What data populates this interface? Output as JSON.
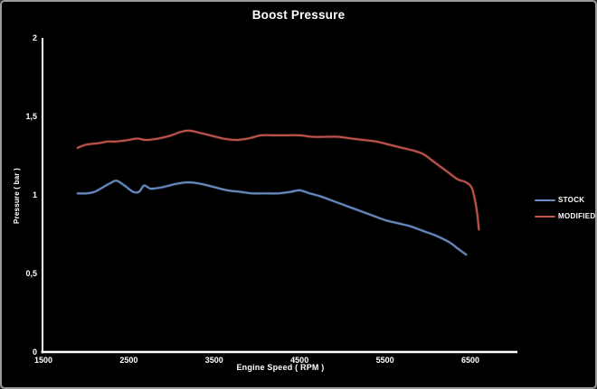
{
  "window": {
    "background": "#000000",
    "border_color": "#9b9b9b",
    "text_color": "#ffffff"
  },
  "chart_data": {
    "type": "line",
    "title": "Boost Pressure",
    "xlabel": "Engine Speed ( RPM )",
    "ylabel": "Pressure ( bar )",
    "xlim": [
      1500,
      7050
    ],
    "ylim": [
      0,
      2
    ],
    "grid": false,
    "axis_color": "#ffffff",
    "x_ticks": {
      "values": [
        1500,
        2500,
        3500,
        4500,
        5500,
        6500
      ],
      "labels": [
        "1500",
        "2500",
        "3500",
        "4500",
        "5500",
        "6500"
      ]
    },
    "y_ticks": {
      "values": [
        2,
        1.5,
        1,
        0.5,
        0
      ],
      "labels": [
        "2",
        "1,5",
        "1",
        "0,5",
        "0"
      ]
    },
    "legend": {
      "position": "right"
    },
    "series": [
      {
        "name": "STOCK",
        "color": "#6a8fc7",
        "points": [
          [
            1900,
            1.01
          ],
          [
            2000,
            1.01
          ],
          [
            2100,
            1.02
          ],
          [
            2200,
            1.05
          ],
          [
            2300,
            1.08
          ],
          [
            2360,
            1.09
          ],
          [
            2450,
            1.06
          ],
          [
            2550,
            1.02
          ],
          [
            2620,
            1.02
          ],
          [
            2680,
            1.06
          ],
          [
            2760,
            1.04
          ],
          [
            2900,
            1.05
          ],
          [
            3050,
            1.07
          ],
          [
            3200,
            1.08
          ],
          [
            3350,
            1.07
          ],
          [
            3500,
            1.05
          ],
          [
            3650,
            1.03
          ],
          [
            3800,
            1.02
          ],
          [
            3950,
            1.01
          ],
          [
            4100,
            1.01
          ],
          [
            4250,
            1.01
          ],
          [
            4400,
            1.02
          ],
          [
            4500,
            1.03
          ],
          [
            4620,
            1.01
          ],
          [
            4750,
            0.99
          ],
          [
            4900,
            0.96
          ],
          [
            5050,
            0.93
          ],
          [
            5200,
            0.9
          ],
          [
            5350,
            0.87
          ],
          [
            5500,
            0.84
          ],
          [
            5650,
            0.82
          ],
          [
            5800,
            0.8
          ],
          [
            5950,
            0.77
          ],
          [
            6100,
            0.74
          ],
          [
            6250,
            0.7
          ],
          [
            6350,
            0.66
          ],
          [
            6450,
            0.62
          ]
        ]
      },
      {
        "name": "MODIFIED",
        "color": "#c4564e",
        "points": [
          [
            1900,
            1.3
          ],
          [
            2000,
            1.32
          ],
          [
            2150,
            1.33
          ],
          [
            2250,
            1.34
          ],
          [
            2350,
            1.34
          ],
          [
            2500,
            1.35
          ],
          [
            2600,
            1.36
          ],
          [
            2700,
            1.35
          ],
          [
            2850,
            1.36
          ],
          [
            3000,
            1.38
          ],
          [
            3100,
            1.4
          ],
          [
            3200,
            1.41
          ],
          [
            3300,
            1.4
          ],
          [
            3450,
            1.38
          ],
          [
            3600,
            1.36
          ],
          [
            3750,
            1.35
          ],
          [
            3900,
            1.36
          ],
          [
            4050,
            1.38
          ],
          [
            4200,
            1.38
          ],
          [
            4350,
            1.38
          ],
          [
            4500,
            1.38
          ],
          [
            4650,
            1.37
          ],
          [
            4800,
            1.37
          ],
          [
            4950,
            1.37
          ],
          [
            5100,
            1.36
          ],
          [
            5250,
            1.35
          ],
          [
            5400,
            1.34
          ],
          [
            5550,
            1.32
          ],
          [
            5700,
            1.3
          ],
          [
            5850,
            1.28
          ],
          [
            5950,
            1.26
          ],
          [
            6050,
            1.22
          ],
          [
            6150,
            1.18
          ],
          [
            6250,
            1.14
          ],
          [
            6350,
            1.1
          ],
          [
            6450,
            1.08
          ],
          [
            6520,
            1.04
          ],
          [
            6570,
            0.92
          ],
          [
            6600,
            0.78
          ]
        ]
      }
    ]
  }
}
